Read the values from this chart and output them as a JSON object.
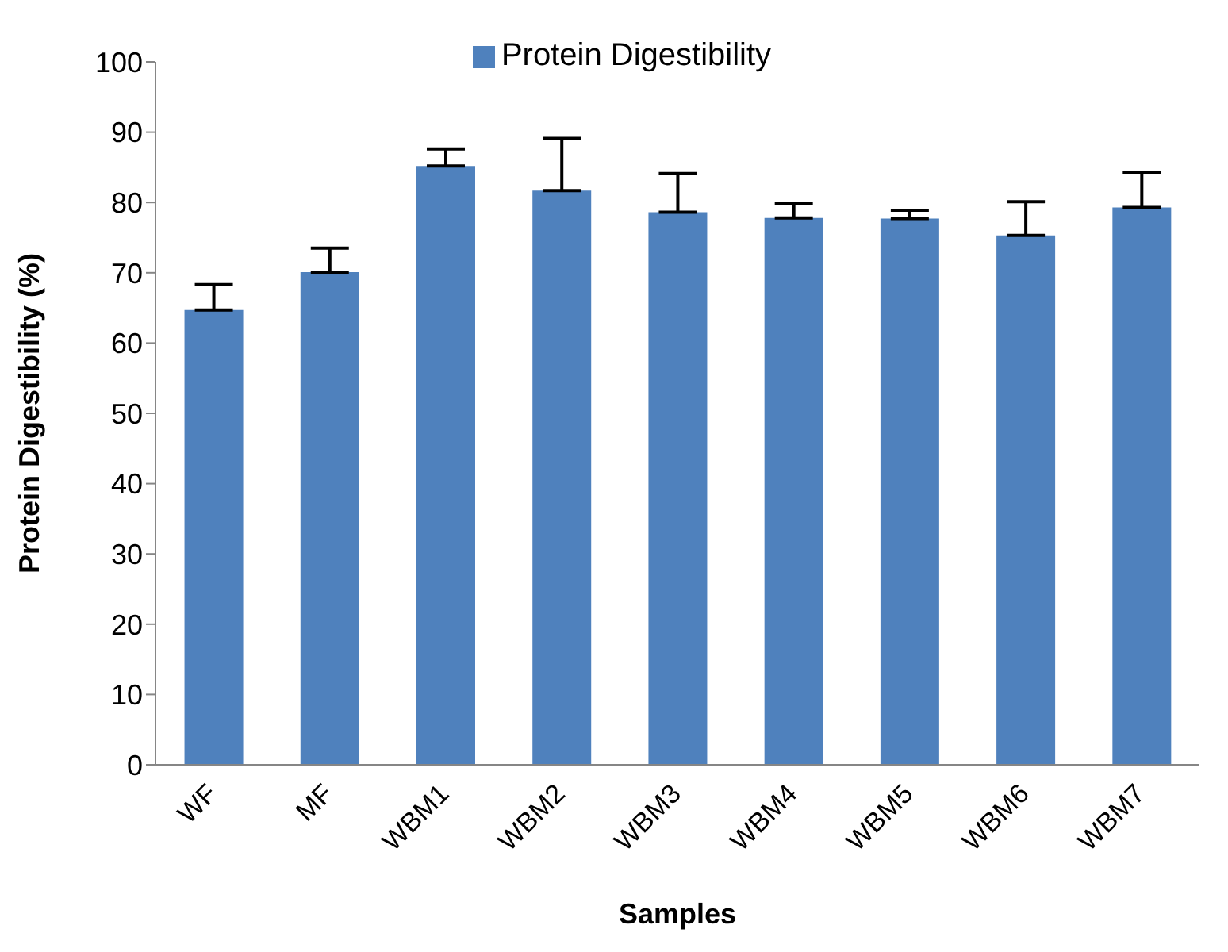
{
  "chart_data": {
    "type": "bar",
    "xlabel": "Samples",
    "ylabel": "Protein Digestibility (%)",
    "categories": [
      "WF",
      "MF",
      "WBM1",
      "WBM2",
      "WBM3",
      "WBM4",
      "WBM5",
      "WBM6",
      "WBM7"
    ],
    "series": [
      {
        "name": "Protein Digestibility",
        "color": "#4f81bd",
        "values": [
          64.7,
          70.1,
          85.2,
          81.7,
          78.6,
          77.8,
          77.7,
          75.3,
          79.3
        ],
        "errors": [
          [
            64.7,
            68.3
          ],
          [
            70.1,
            73.5
          ],
          [
            85.2,
            87.6
          ],
          [
            81.7,
            89.1
          ],
          [
            78.6,
            84.1
          ],
          [
            77.8,
            79.8
          ],
          [
            77.7,
            78.9
          ],
          [
            75.3,
            80.1
          ],
          [
            79.3,
            84.3
          ]
        ]
      }
    ],
    "ylim": [
      0,
      100
    ],
    "yticks": [
      0,
      10,
      20,
      30,
      40,
      50,
      60,
      70,
      80,
      90,
      100
    ],
    "legend": "top"
  }
}
